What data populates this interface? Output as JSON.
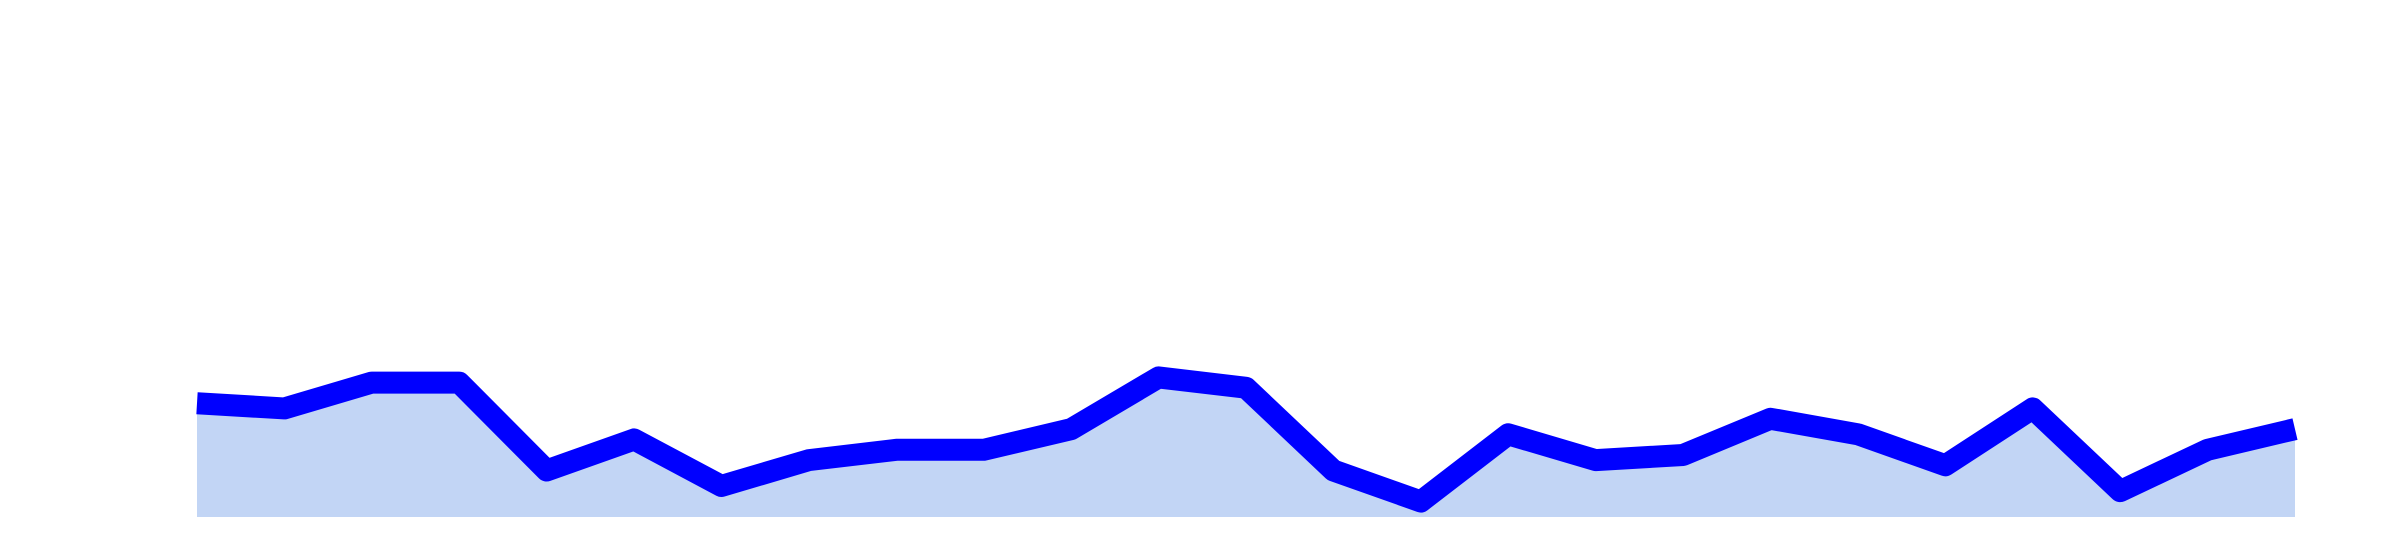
{
  "chart_data": {
    "type": "area",
    "x": [
      0,
      1,
      2,
      3,
      4,
      5,
      6,
      7,
      8,
      9,
      10,
      11,
      12,
      13,
      14,
      15,
      16,
      17,
      18,
      19,
      20,
      21,
      22,
      23,
      24
    ],
    "values": [
      22,
      21,
      26,
      26,
      9,
      15,
      6,
      11,
      13,
      13,
      17,
      27,
      25,
      9,
      3,
      16,
      11,
      12,
      19,
      16,
      10,
      21,
      5,
      13,
      17
    ],
    "title": "",
    "xlabel": "",
    "ylabel": "",
    "ylim": [
      0,
      100
    ],
    "grid": false,
    "legend": "none",
    "colors": {
      "line": "#0000ff",
      "fill": "#c2d5f5"
    }
  }
}
